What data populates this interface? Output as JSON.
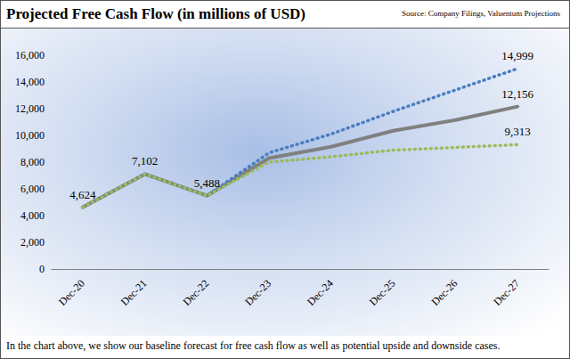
{
  "chart_data": {
    "type": "line",
    "title": "Projected Free Cash Flow (in millions of USD)",
    "source": "Source: Company Filings, Valuentum Projections",
    "caption": "In the chart above, we show our baseline forecast for free cash flow as well as potential upside and downside cases.",
    "categories": [
      "Dec-20",
      "Dec-21",
      "Dec-22",
      "Dec-23",
      "Dec-24",
      "Dec-25",
      "Dec-26",
      "Dec-27"
    ],
    "series": [
      {
        "color": "#808080",
        "line_style": "solid",
        "values": [
          4624,
          7102,
          5488,
          8300,
          9150,
          10350,
          11150,
          12156
        ],
        "value_labels": [
          "4,624",
          "7,102",
          "5,488",
          null,
          null,
          null,
          null,
          "12,156"
        ]
      },
      {
        "color": "#4a7ebf",
        "line_style": "dotted",
        "values": [
          4624,
          7102,
          5488,
          8700,
          10100,
          11800,
          13400,
          14999
        ],
        "value_labels": [
          null,
          null,
          null,
          null,
          null,
          null,
          null,
          "14,999"
        ]
      },
      {
        "color": "#9bbb59",
        "line_style": "dotted",
        "values": [
          4624,
          7102,
          5488,
          8000,
          8400,
          8900,
          9100,
          9313
        ],
        "value_labels": [
          null,
          null,
          null,
          null,
          null,
          null,
          null,
          "9,313"
        ]
      }
    ],
    "ylim": [
      0,
      16000
    ],
    "yticks": [
      0,
      {
        "value": 2000,
        "label": "2,000"
      },
      {
        "value": 4000,
        "label": "4,000"
      },
      {
        "value": 6000,
        "label": "6,000"
      },
      {
        "value": 8000,
        "label": "8,000"
      },
      {
        "value": 10000,
        "label": "10,000"
      },
      {
        "value": 12000,
        "label": "12,000"
      },
      {
        "value": 14000,
        "label": "14,000"
      },
      {
        "value": 16000,
        "label": "16,000"
      }
    ],
    "grid": false,
    "data_labels": true
  }
}
